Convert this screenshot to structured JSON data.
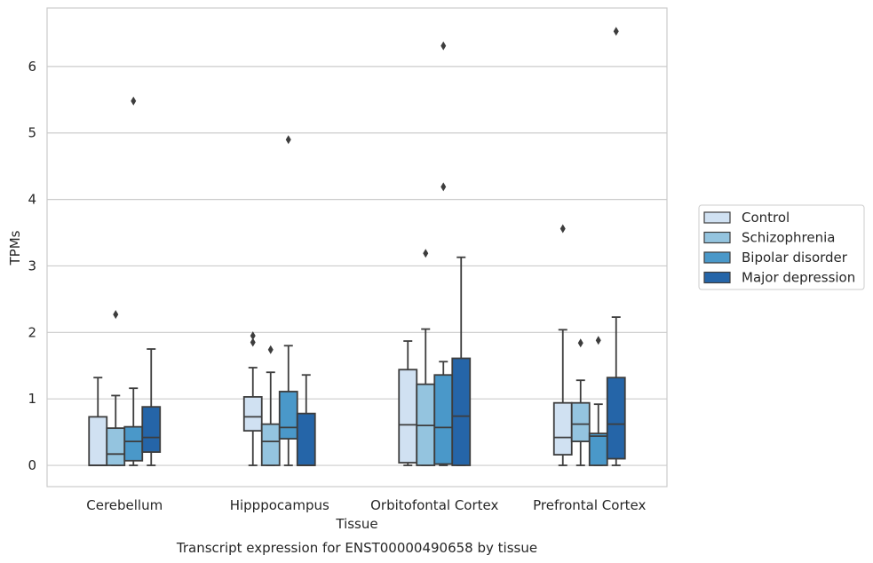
{
  "chart_data": {
    "type": "box",
    "title": "",
    "caption": "Transcript expression for ENST00000490658 by tissue",
    "xlabel": "Tissue",
    "ylabel": "TPMs",
    "categories": [
      "Cerebellum",
      "Hipppocampus",
      "Orbitofontal Cortex",
      "Prefrontal Cortex"
    ],
    "yticks": [
      0,
      1,
      2,
      3,
      4,
      5,
      6
    ],
    "ylim": [
      -0.32,
      6.88
    ],
    "grid": "horizontal",
    "legend_position": "right",
    "series": [
      {
        "name": "Control",
        "color": "#d0e1f2",
        "boxes": [
          {
            "whislo": 0,
            "q1": 0,
            "med": 0,
            "q3": 0.73,
            "whishi": 1.32,
            "fliers": []
          },
          {
            "whislo": 0,
            "q1": 0.52,
            "med": 0.73,
            "q3": 1.03,
            "whishi": 1.47,
            "fliers": [
              1.85,
              1.95
            ]
          },
          {
            "whislo": 0,
            "q1": 0.04,
            "med": 0.61,
            "q3": 1.44,
            "whishi": 1.87,
            "fliers": []
          },
          {
            "whislo": 0,
            "q1": 0.16,
            "med": 0.42,
            "q3": 0.94,
            "whishi": 2.04,
            "fliers": [
              3.56
            ]
          }
        ]
      },
      {
        "name": "Schizophrenia",
        "color": "#94c4df",
        "boxes": [
          {
            "whislo": 0,
            "q1": 0,
            "med": 0.17,
            "q3": 0.56,
            "whishi": 1.05,
            "fliers": [
              2.27
            ]
          },
          {
            "whislo": 0,
            "q1": 0,
            "med": 0.36,
            "q3": 0.62,
            "whishi": 1.4,
            "fliers": [
              1.74
            ]
          },
          {
            "whislo": 0,
            "q1": 0,
            "med": 0.6,
            "q3": 1.22,
            "whishi": 2.05,
            "fliers": [
              3.19
            ]
          },
          {
            "whislo": 0,
            "q1": 0.36,
            "med": 0.62,
            "q3": 0.94,
            "whishi": 1.28,
            "fliers": [
              1.84
            ]
          }
        ]
      },
      {
        "name": "Bipolar disorder",
        "color": "#4a98c9",
        "boxes": [
          {
            "whislo": 0,
            "q1": 0.07,
            "med": 0.36,
            "q3": 0.58,
            "whishi": 1.16,
            "fliers": [
              5.48
            ]
          },
          {
            "whislo": 0,
            "q1": 0.4,
            "med": 0.57,
            "q3": 1.11,
            "whishi": 1.8,
            "fliers": [
              4.9
            ]
          },
          {
            "whislo": 0,
            "q1": 0.02,
            "med": 0.57,
            "q3": 1.36,
            "whishi": 1.56,
            "fliers": [
              4.19,
              6.31
            ]
          },
          {
            "whislo": 0,
            "q1": 0,
            "med": 0.44,
            "q3": 0.48,
            "whishi": 0.92,
            "fliers": [
              1.88
            ]
          }
        ]
      },
      {
        "name": "Major depression",
        "color": "#2565a8",
        "boxes": [
          {
            "whislo": 0,
            "q1": 0.2,
            "med": 0.42,
            "q3": 0.88,
            "whishi": 1.75,
            "fliers": []
          },
          {
            "whislo": 0,
            "q1": 0,
            "med": 0,
            "q3": 0.78,
            "whishi": 1.36,
            "fliers": []
          },
          {
            "whislo": 0,
            "q1": 0,
            "med": 0.74,
            "q3": 1.61,
            "whishi": 3.13,
            "fliers": []
          },
          {
            "whislo": 0,
            "q1": 0.1,
            "med": 0.62,
            "q3": 1.32,
            "whishi": 2.23,
            "fliers": [
              6.53
            ]
          }
        ]
      }
    ]
  }
}
